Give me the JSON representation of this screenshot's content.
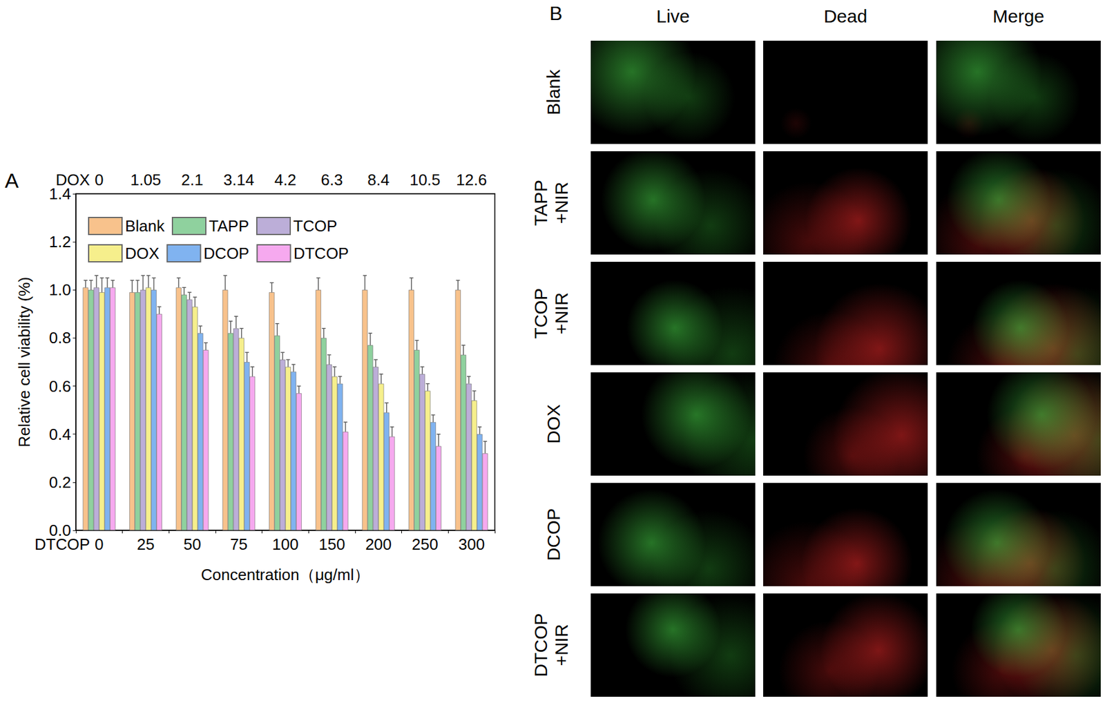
{
  "panel_labels": [
    "A",
    "B"
  ],
  "chart_data": {
    "type": "bar",
    "categories": [
      "0",
      "25",
      "50",
      "75",
      "100",
      "150",
      "200",
      "250",
      "300"
    ],
    "top_categories": [
      "0",
      "1.05",
      "2.1",
      "3.14",
      "4.2",
      "6.3",
      "8.4",
      "10.5",
      "12.6"
    ],
    "bottom_axis_name": "DTCOP",
    "top_axis_name": "DOX",
    "xlabel": "Concentration（μg/ml）",
    "ylabel": "Relative cell viability (%)",
    "ylim": [
      0,
      1.4
    ],
    "yticks": [
      {
        "value": 0,
        "label": "0.0"
      },
      {
        "value": 0.2,
        "label": "0.2"
      },
      {
        "value": 0.4,
        "label": "0.4"
      },
      {
        "value": 0.6,
        "label": "0.6"
      },
      {
        "value": 0.8,
        "label": "0.8"
      },
      {
        "value": 1.0,
        "label": "1.0"
      },
      {
        "value": 1.2,
        "label": "1.2"
      },
      {
        "value": 1.4,
        "label": "1.4"
      }
    ],
    "legend": "upper left",
    "grid": false,
    "series": [
      {
        "name": "Blank",
        "color": "#f8c28c",
        "values": [
          1.01,
          0.99,
          1.01,
          1.0,
          0.99,
          1.0,
          1.0,
          1.0,
          1.0
        ],
        "errors": [
          0.03,
          0.05,
          0.04,
          0.06,
          0.04,
          0.05,
          0.06,
          0.05,
          0.04
        ]
      },
      {
        "name": "TAPP",
        "color": "#8fd19e",
        "values": [
          1.0,
          0.99,
          0.98,
          0.82,
          0.81,
          0.8,
          0.77,
          0.75,
          0.73
        ],
        "errors": [
          0.04,
          0.05,
          0.03,
          0.05,
          0.05,
          0.04,
          0.05,
          0.04,
          0.04
        ]
      },
      {
        "name": "TCOP",
        "color": "#bcaed8",
        "values": [
          1.01,
          1.0,
          0.96,
          0.84,
          0.71,
          0.69,
          0.68,
          0.65,
          0.61
        ],
        "errors": [
          0.05,
          0.06,
          0.03,
          0.05,
          0.03,
          0.04,
          0.03,
          0.03,
          0.03
        ]
      },
      {
        "name": "DOX",
        "color": "#f6ef8c",
        "values": [
          0.99,
          1.01,
          0.93,
          0.8,
          0.68,
          0.64,
          0.61,
          0.58,
          0.54
        ],
        "errors": [
          0.06,
          0.05,
          0.04,
          0.04,
          0.03,
          0.04,
          0.04,
          0.03,
          0.04
        ]
      },
      {
        "name": "DCOP",
        "color": "#80b3f0",
        "values": [
          1.01,
          1.0,
          0.82,
          0.7,
          0.66,
          0.61,
          0.49,
          0.45,
          0.4
        ],
        "errors": [
          0.04,
          0.05,
          0.03,
          0.04,
          0.03,
          0.03,
          0.04,
          0.03,
          0.03
        ]
      },
      {
        "name": "DTCOP",
        "color": "#f6a9ef",
        "values": [
          1.01,
          0.9,
          0.75,
          0.64,
          0.57,
          0.41,
          0.39,
          0.35,
          0.32
        ],
        "errors": [
          0.03,
          0.03,
          0.03,
          0.04,
          0.03,
          0.04,
          0.04,
          0.05,
          0.05
        ]
      }
    ]
  },
  "images": {
    "columns": [
      "Live",
      "Dead",
      "Merge"
    ],
    "rows": [
      "Blank",
      "TAPP +NIR",
      "TCOP +NIR",
      "DOX",
      "DCOP",
      "DTCOP +NIR"
    ]
  }
}
